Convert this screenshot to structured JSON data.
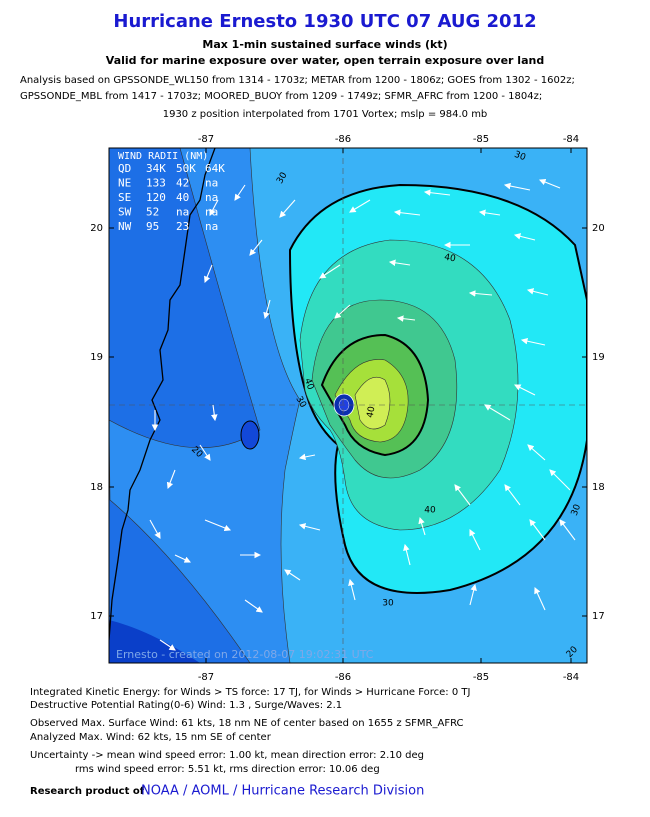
{
  "header": {
    "title": "Hurricane Ernesto 1930 UTC 07 AUG 2012",
    "subtitle_lines": [
      "Max 1-min sustained surface winds (kt)",
      "Valid for marine exposure over water, open terrain exposure over land"
    ],
    "analysis_lines": [
      "Analysis based on GPSSONDE_WL150 from 1314 - 1703z; METAR from 1200 - 1806z; GOES from 1302 - 1602z;",
      "GPSSONDE_MBL from 1417 - 1703z; MOORED_BUOY from 1209 - 1749z; SFMR_AFRC from 1200 - 1804z;"
    ],
    "position_note": "1930 z position interpolated from 1701 Vortex; mslp = 984.0 mb"
  },
  "map": {
    "lon_ticks": [
      -87,
      -86,
      -85,
      -84
    ],
    "lat_ticks": [
      20,
      19,
      18,
      17
    ],
    "contour_labels": [
      30,
      30,
      40,
      40,
      30,
      20,
      40,
      40,
      30,
      30,
      20
    ],
    "credit": "Ernesto - created on 2012-08-07 19:02:31 UTC"
  },
  "wind_radii": {
    "title": "WIND RADII (NM)",
    "rows": [
      [
        "QD",
        "34K",
        "50K",
        "64K"
      ],
      [
        "NE",
        "133",
        "42",
        "na"
      ],
      [
        "SE",
        "120",
        "40",
        "na"
      ],
      [
        "SW",
        "52",
        "na",
        "na"
      ],
      [
        "NW",
        "95",
        "23",
        "na"
      ]
    ]
  },
  "footer": {
    "lines": [
      "Integrated Kinetic Energy: for Winds > TS force: 17 TJ, for Winds > Hurricane Force: 0 TJ",
      "Destructive Potential Rating(0-6)  Wind: 1.3 , Surge/Waves: 2.1",
      "Observed Max. Surface Wind: 61 kts, 18 nm NE of center based on 1655 z SFMR_AFRC",
      "Analyzed Max. Wind: 62 kts, 15 nm  SE of center",
      "Uncertainty -> mean wind speed error: 1.00 kt, mean direction error: 2.10 deg",
      "rms wind speed error: 5.51 kt, rms direction error: 10.06 deg"
    ],
    "credit_prefix": "Research product of",
    "credit_link": "NOAA / AOML / Hurricane Research Division"
  }
}
